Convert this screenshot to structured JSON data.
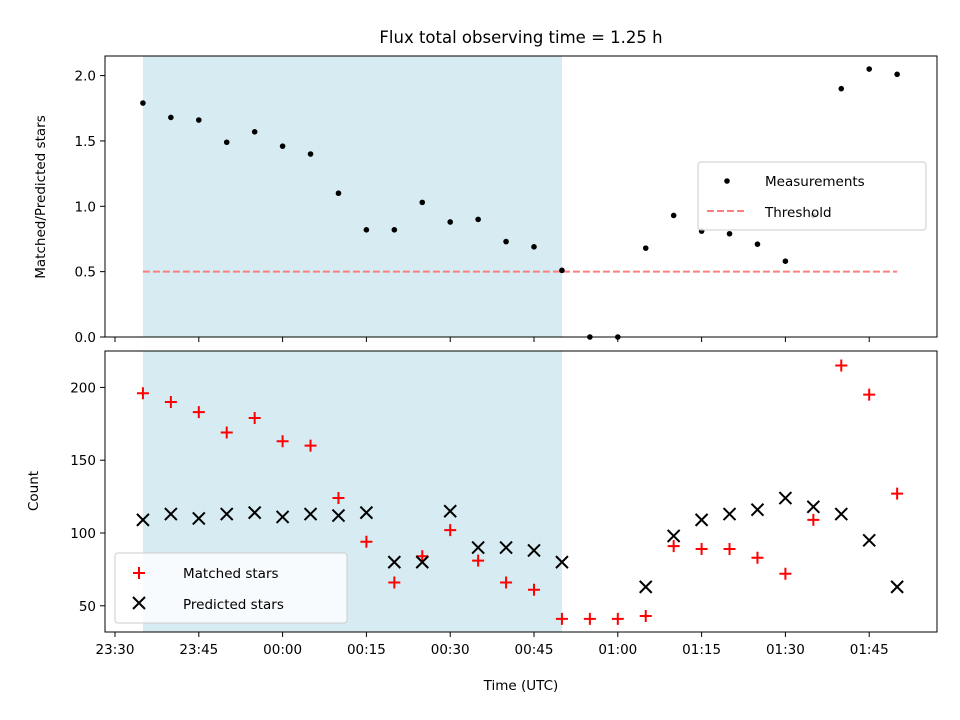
{
  "title": "Flux total observing time = 1.25 h",
  "colors": {
    "measurement": "#000000",
    "threshold": "#ff7f7f",
    "shade": "#add8e6",
    "matched": "#ff0000",
    "predicted": "#000000"
  },
  "chart_data": [
    {
      "type": "scatter",
      "title": "Flux total observing time = 1.25 h",
      "xlabel": "",
      "ylabel": "Matched/Predicted stars",
      "ylim": [
        0,
        2.15
      ],
      "yticks": [
        "0.0",
        "0.5",
        "1.0",
        "1.5",
        "2.0"
      ],
      "x_ticks": [
        "23:30",
        "23:45",
        "00:00",
        "00:15",
        "00:30",
        "00:45",
        "01:00",
        "01:15",
        "01:30",
        "01:45"
      ],
      "shaded_span": [
        "23:35",
        "00:50"
      ],
      "legend_position": "center-right",
      "series": [
        {
          "name": "Measurements",
          "marker": "dot",
          "x": [
            "23:35",
            "23:40",
            "23:45",
            "23:50",
            "23:55",
            "00:00",
            "00:05",
            "00:10",
            "00:15",
            "00:20",
            "00:25",
            "00:30",
            "00:35",
            "00:40",
            "00:45",
            "00:50",
            "00:55",
            "01:00",
            "01:05",
            "01:10",
            "01:15",
            "01:20",
            "01:25",
            "01:30",
            "01:35",
            "01:40",
            "01:45",
            "01:50"
          ],
          "y": [
            1.79,
            1.68,
            1.66,
            1.49,
            1.57,
            1.46,
            1.4,
            1.1,
            0.82,
            0.82,
            1.03,
            0.88,
            0.9,
            0.73,
            0.69,
            0.51,
            0.0,
            0.0,
            0.68,
            0.93,
            0.81,
            0.79,
            0.71,
            0.58,
            0.93,
            1.9,
            2.05,
            2.01
          ]
        },
        {
          "name": "Threshold",
          "style": "dashed",
          "x": [
            "23:35",
            "01:50"
          ],
          "y": [
            0.5,
            0.5
          ]
        }
      ]
    },
    {
      "type": "scatter",
      "xlabel": "Time (UTC)",
      "ylabel": "Count",
      "ylim": [
        32,
        225
      ],
      "yticks": [
        "50",
        "100",
        "150",
        "200"
      ],
      "x_ticks": [
        "23:30",
        "23:45",
        "00:00",
        "00:15",
        "00:30",
        "00:45",
        "01:00",
        "01:15",
        "01:30",
        "01:45"
      ],
      "shaded_span": [
        "23:35",
        "00:50"
      ],
      "legend_position": "lower-left",
      "series": [
        {
          "name": "Matched stars",
          "marker": "plus",
          "x": [
            "23:35",
            "23:40",
            "23:45",
            "23:50",
            "23:55",
            "00:00",
            "00:05",
            "00:10",
            "00:15",
            "00:20",
            "00:25",
            "00:30",
            "00:35",
            "00:40",
            "00:45",
            "00:50",
            "00:55",
            "01:00",
            "01:05",
            "01:10",
            "01:15",
            "01:20",
            "01:25",
            "01:30",
            "01:35",
            "01:40",
            "01:45",
            "01:50"
          ],
          "y": [
            196,
            190,
            183,
            169,
            179,
            163,
            160,
            124,
            94,
            66,
            84,
            102,
            81,
            66,
            61,
            41,
            41,
            41,
            43,
            91,
            89,
            89,
            83,
            72,
            109,
            215,
            195,
            127
          ]
        },
        {
          "name": "Predicted stars",
          "marker": "cross",
          "x": [
            "23:35",
            "23:40",
            "23:45",
            "23:50",
            "23:55",
            "00:00",
            "00:05",
            "00:10",
            "00:15",
            "00:20",
            "00:25",
            "00:30",
            "00:35",
            "00:40",
            "00:45",
            "00:50",
            "01:05",
            "01:10",
            "01:15",
            "01:20",
            "01:25",
            "01:30",
            "01:35",
            "01:40",
            "01:45",
            "01:50"
          ],
          "y": [
            109,
            113,
            110,
            113,
            114,
            111,
            113,
            112,
            114,
            80,
            80,
            115,
            90,
            90,
            88,
            80,
            63,
            98,
            109,
            113,
            116,
            124,
            118,
            113,
            95,
            63
          ]
        }
      ]
    }
  ]
}
